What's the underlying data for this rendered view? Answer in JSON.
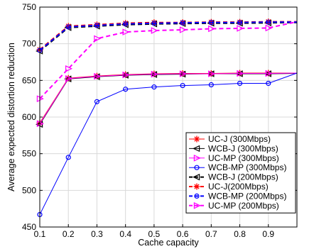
{
  "chart_data": {
    "type": "line",
    "title": "",
    "xlabel": "Cache capacity",
    "ylabel": "Average expected distortion reduction",
    "xlim": [
      0.1,
      1.0
    ],
    "ylim": [
      450,
      750
    ],
    "xticks": [
      "0.1",
      "0.2",
      "0.3",
      "0.4",
      "0.5",
      "0.6",
      "0.7",
      "0.8",
      "0.9"
    ],
    "yticks": [
      "450",
      "500",
      "550",
      "600",
      "650",
      "700",
      "750"
    ],
    "x": [
      0.1,
      0.2,
      0.3,
      0.4,
      0.5,
      0.6,
      0.7,
      0.8,
      0.9,
      1.0
    ],
    "grid": true,
    "legend_position": "bottom-right",
    "series": [
      {
        "name": "UC-J (300Mbps)",
        "color": "#ff0000",
        "dash": "solid",
        "marker": "star",
        "values": [
          592,
          653,
          656,
          658,
          659,
          659.5,
          659.5,
          660,
          660,
          660
        ]
      },
      {
        "name": "WCB-J (300Mbps)",
        "color": "#000000",
        "dash": "solid",
        "marker": "triangle-left",
        "values": [
          590,
          652,
          655,
          657,
          658,
          658.5,
          659,
          659,
          659,
          659.5
        ]
      },
      {
        "name": "UC-MP (300Mbps)",
        "color": "#ff00ff",
        "dash": "solid",
        "marker": "triangle-right",
        "values": [
          591,
          652.5,
          655.5,
          657.5,
          658.5,
          659,
          659,
          659.5,
          659.5,
          660
        ]
      },
      {
        "name": "WCB-MP (300Mbps)",
        "color": "#0000ff",
        "dash": "solid",
        "marker": "circle",
        "values": [
          467,
          545,
          621,
          638,
          641,
          643,
          644,
          646,
          646,
          660
        ]
      },
      {
        "name": "WCB-J (200Mbps)",
        "color": "#000000",
        "dash": "dashed",
        "marker": "triangle-left",
        "values": [
          690,
          722,
          724,
          726,
          727,
          727.5,
          728,
          728,
          728.5,
          729
        ]
      },
      {
        "name": "UC-J(200Mbps)",
        "color": "#ff0000",
        "dash": "dashed",
        "marker": "star",
        "values": [
          692,
          724,
          726,
          728,
          729,
          729,
          729.5,
          729.5,
          730,
          730
        ]
      },
      {
        "name": "WCB-MP (200Mbps)",
        "color": "#0000ff",
        "dash": "dashed",
        "marker": "circle",
        "values": [
          691,
          723,
          725,
          727,
          728,
          728.5,
          729,
          729,
          729.5,
          729.5
        ]
      },
      {
        "name": "UC-MP (200Mbps)",
        "color": "#ff00ff",
        "dash": "dashed",
        "marker": "triangle-right",
        "values": [
          625,
          666,
          707,
          716,
          718,
          719,
          720.5,
          721,
          721.5,
          730
        ]
      }
    ]
  }
}
